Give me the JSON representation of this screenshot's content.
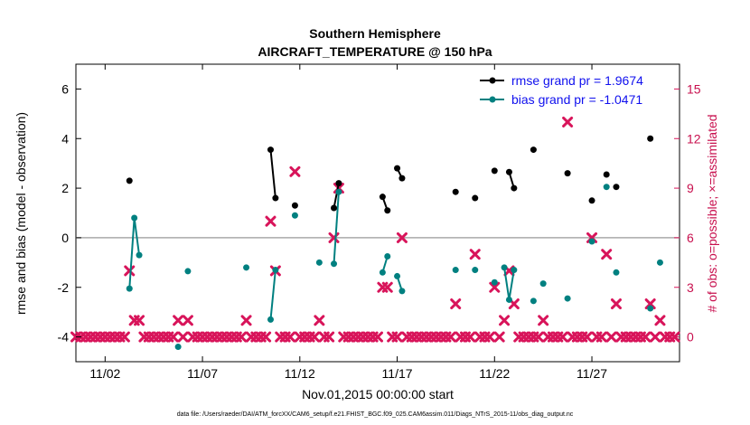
{
  "chart_data": {
    "type": "scatter",
    "title": "Southern Hemisphere",
    "subtitle": "AIRCRAFT_TEMPERATURE @ 150 hPa",
    "xlabel": "Nov.01,2015 00:00:00 start",
    "ylabel": "rmse and bias (model - observation)",
    "y2label": "# of obs: o=possible; ×=assimilated",
    "footnote": "data file: /Users/raeder/DAI/ATM_forcXX/CAM6_setup/f.e21.FHIST_BGC.f09_025.CAM6assim.011/Diags_NTrS_2015-11/obs_diag_output.nc",
    "xlim": [
      0.5,
      31.5
    ],
    "ylim": [
      -5,
      7
    ],
    "y2lim": [
      -1.5,
      16.5
    ],
    "xticks": [
      2,
      7,
      12,
      17,
      22,
      27
    ],
    "xticklabels": [
      "11/02",
      "11/07",
      "11/12",
      "11/17",
      "11/22",
      "11/27"
    ],
    "yticks": [
      -4,
      -2,
      0,
      2,
      4,
      6
    ],
    "y2ticks": [
      0,
      3,
      6,
      9,
      12,
      15
    ],
    "grid": false,
    "legend_placement": "top-right",
    "colors": {
      "rmse": "#000000",
      "bias": "#008080",
      "obs": "#d8145a",
      "zero_line": "#aaaaaa"
    },
    "series": [
      {
        "name": "rmse grand pr = 1.9674",
        "color": "#000000",
        "marker": "filled-circle",
        "points": [
          [
            3.25,
            2.3
          ],
          [
            10.5,
            3.55
          ],
          [
            10.75,
            1.6
          ],
          [
            11.75,
            1.3
          ],
          [
            13.75,
            1.2
          ],
          [
            14.0,
            2.2
          ],
          [
            16.25,
            1.65
          ],
          [
            16.5,
            1.1
          ],
          [
            17.0,
            2.8
          ],
          [
            17.25,
            2.4
          ],
          [
            20.0,
            1.85
          ],
          [
            21.0,
            1.6
          ],
          [
            22.0,
            2.7
          ],
          [
            22.75,
            2.65
          ],
          [
            23.0,
            2.0
          ],
          [
            24.0,
            3.55
          ],
          [
            25.75,
            2.6
          ],
          [
            27.0,
            1.5
          ],
          [
            27.75,
            2.55
          ],
          [
            28.25,
            2.05
          ],
          [
            30.0,
            4.0
          ]
        ],
        "segments": [
          [
            1,
            2
          ],
          [
            4,
            5
          ],
          [
            6,
            7
          ],
          [
            8,
            9
          ],
          [
            13,
            14
          ]
        ]
      },
      {
        "name": "bias grand pr = -1.0471",
        "color": "#008080",
        "marker": "filled-circle",
        "points": [
          [
            3.25,
            -2.05
          ],
          [
            3.5,
            0.8
          ],
          [
            3.75,
            -0.7
          ],
          [
            5.75,
            -4.4
          ],
          [
            6.25,
            -1.35
          ],
          [
            9.25,
            -1.2
          ],
          [
            10.5,
            -3.3
          ],
          [
            10.75,
            -1.3
          ],
          [
            11.75,
            0.9
          ],
          [
            13.0,
            -1.0
          ],
          [
            13.75,
            -1.05
          ],
          [
            14.0,
            1.85
          ],
          [
            16.25,
            -1.4
          ],
          [
            16.5,
            -0.75
          ],
          [
            17.0,
            -1.55
          ],
          [
            17.25,
            -2.15
          ],
          [
            20.0,
            -1.3
          ],
          [
            21.0,
            -1.3
          ],
          [
            22.0,
            -1.8
          ],
          [
            22.5,
            -1.2
          ],
          [
            22.75,
            -2.5
          ],
          [
            23.0,
            -1.3
          ],
          [
            24.0,
            -2.55
          ],
          [
            24.5,
            -1.85
          ],
          [
            25.75,
            -2.45
          ],
          [
            27.0,
            -0.15
          ],
          [
            27.75,
            2.05
          ],
          [
            28.25,
            -1.4
          ],
          [
            30.0,
            -2.85
          ],
          [
            30.5,
            -1.0
          ]
        ],
        "segments": [
          [
            0,
            1
          ],
          [
            1,
            2
          ],
          [
            6,
            7
          ],
          [
            10,
            11
          ],
          [
            12,
            13
          ],
          [
            14,
            15
          ],
          [
            19,
            20
          ],
          [
            20,
            21
          ]
        ]
      }
    ],
    "obs_possible": [],
    "obs_assimilated": [
      [
        0.5,
        0
      ],
      [
        0.75,
        0
      ],
      [
        1.0,
        0
      ],
      [
        1.25,
        0
      ],
      [
        1.5,
        0
      ],
      [
        1.75,
        0
      ],
      [
        2.0,
        0
      ],
      [
        2.25,
        0
      ],
      [
        2.5,
        0
      ],
      [
        2.75,
        0
      ],
      [
        3.0,
        0
      ],
      [
        3.25,
        4
      ],
      [
        3.5,
        1
      ],
      [
        3.75,
        1
      ],
      [
        4.0,
        0
      ],
      [
        4.25,
        0
      ],
      [
        4.5,
        0
      ],
      [
        4.75,
        0
      ],
      [
        5.0,
        0
      ],
      [
        5.25,
        0
      ],
      [
        5.5,
        0
      ],
      [
        5.75,
        1
      ],
      [
        6.0,
        0
      ],
      [
        6.25,
        1
      ],
      [
        6.5,
        0
      ],
      [
        6.75,
        0
      ],
      [
        7.0,
        0
      ],
      [
        7.25,
        0
      ],
      [
        7.5,
        0
      ],
      [
        7.75,
        0
      ],
      [
        8.0,
        0
      ],
      [
        8.25,
        0
      ],
      [
        8.5,
        0
      ],
      [
        8.75,
        0
      ],
      [
        9.0,
        0
      ],
      [
        9.25,
        1
      ],
      [
        9.5,
        0
      ],
      [
        9.75,
        0
      ],
      [
        10.0,
        0
      ],
      [
        10.25,
        0
      ],
      [
        10.5,
        7
      ],
      [
        10.75,
        4
      ],
      [
        11.0,
        0
      ],
      [
        11.25,
        0
      ],
      [
        11.5,
        0
      ],
      [
        11.75,
        10
      ],
      [
        12.0,
        0
      ],
      [
        12.25,
        0
      ],
      [
        12.5,
        0
      ],
      [
        12.75,
        0
      ],
      [
        13.0,
        1
      ],
      [
        13.25,
        0
      ],
      [
        13.5,
        0
      ],
      [
        13.75,
        6
      ],
      [
        14.0,
        9
      ],
      [
        14.25,
        0
      ],
      [
        14.5,
        0
      ],
      [
        14.75,
        0
      ],
      [
        15.0,
        0
      ],
      [
        15.25,
        0
      ],
      [
        15.5,
        0
      ],
      [
        15.75,
        0
      ],
      [
        16.0,
        0
      ],
      [
        16.25,
        3
      ],
      [
        16.5,
        3
      ],
      [
        16.75,
        0
      ],
      [
        17.0,
        0
      ],
      [
        17.25,
        6
      ],
      [
        17.5,
        0
      ],
      [
        17.75,
        0
      ],
      [
        18.0,
        0
      ],
      [
        18.25,
        0
      ],
      [
        18.5,
        0
      ],
      [
        18.75,
        0
      ],
      [
        19.0,
        0
      ],
      [
        19.25,
        0
      ],
      [
        19.5,
        0
      ],
      [
        19.75,
        0
      ],
      [
        20.0,
        2
      ],
      [
        20.25,
        0
      ],
      [
        20.5,
        0
      ],
      [
        20.75,
        0
      ],
      [
        21.0,
        5
      ],
      [
        21.25,
        0
      ],
      [
        21.5,
        0
      ],
      [
        21.75,
        0
      ],
      [
        22.0,
        3
      ],
      [
        22.25,
        0
      ],
      [
        22.5,
        1
      ],
      [
        22.75,
        4
      ],
      [
        23.0,
        2
      ],
      [
        23.25,
        0
      ],
      [
        23.5,
        0
      ],
      [
        23.75,
        0
      ],
      [
        24.0,
        0
      ],
      [
        24.25,
        0
      ],
      [
        24.5,
        1
      ],
      [
        24.75,
        0
      ],
      [
        25.0,
        0
      ],
      [
        25.25,
        0
      ],
      [
        25.5,
        0
      ],
      [
        25.75,
        13
      ],
      [
        26.0,
        0
      ],
      [
        26.25,
        0
      ],
      [
        26.5,
        0
      ],
      [
        26.75,
        0
      ],
      [
        27.0,
        6
      ],
      [
        27.25,
        0
      ],
      [
        27.5,
        0
      ],
      [
        27.75,
        5
      ],
      [
        28.0,
        0
      ],
      [
        28.25,
        2
      ],
      [
        28.5,
        0
      ],
      [
        28.75,
        0
      ],
      [
        29.0,
        0
      ],
      [
        29.25,
        0
      ],
      [
        29.5,
        0
      ],
      [
        29.75,
        0
      ],
      [
        30.0,
        2
      ],
      [
        30.25,
        0
      ],
      [
        30.5,
        1
      ],
      [
        30.75,
        0
      ],
      [
        31.0,
        0
      ],
      [
        31.25,
        0
      ]
    ]
  }
}
